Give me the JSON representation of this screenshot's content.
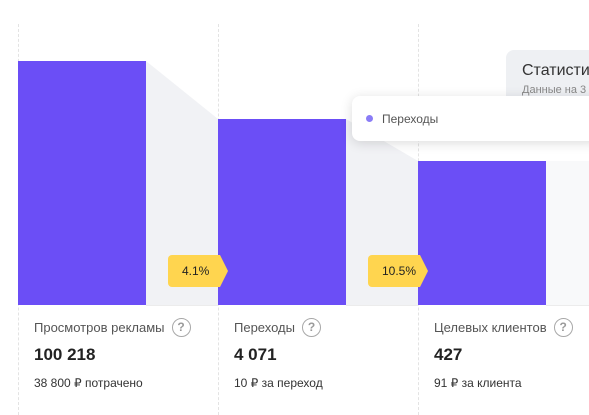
{
  "stages": [
    {
      "label": "Просмотров рекламы",
      "value": "100 218",
      "sub": "38 800 ₽ потрачено"
    },
    {
      "label": "Переходы",
      "value": "4 071",
      "sub": "10 ₽ за переход"
    },
    {
      "label": "Целевых клиентов",
      "value": "427",
      "sub": "91 ₽ за клиента"
    }
  ],
  "conversion_rates": [
    "4.1%",
    "10.5%"
  ],
  "help_glyph": "?",
  "stats_card": {
    "title": "Статистика",
    "subtitle": "Данные на 3"
  },
  "tooltip": {
    "label": "Переходы"
  },
  "colors": {
    "bar": "#6b4ef6",
    "rate_badge": "#ffd54f",
    "funnel_bg": "#f1f2f5",
    "tooltip_dot": "#8a7cf6"
  }
}
